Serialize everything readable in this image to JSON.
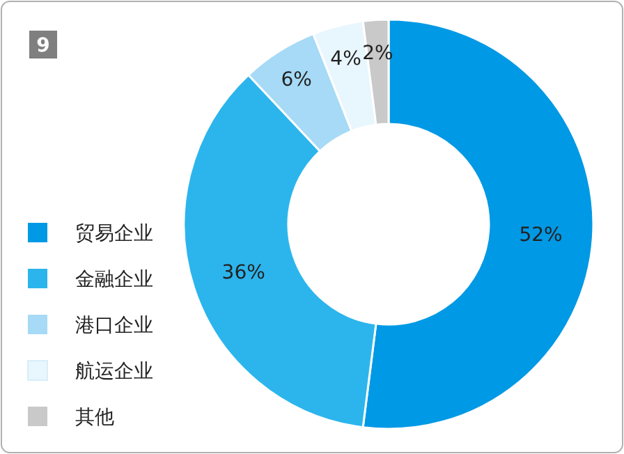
{
  "chart_data": {
    "type": "donut",
    "categories": [
      "贸易企业",
      "金融企业",
      "港口企业",
      "航运企业",
      "其他"
    ],
    "values": [
      52,
      36,
      6,
      4,
      2
    ],
    "value_labels": [
      "52%",
      "36%",
      "6%",
      "4%",
      "2%"
    ],
    "colors": [
      "#0099e5",
      "#2cb5ec",
      "#a6daf6",
      "#e8f6fd",
      "#c9c9c9"
    ],
    "legend": "left",
    "annotations": [
      "9"
    ]
  }
}
